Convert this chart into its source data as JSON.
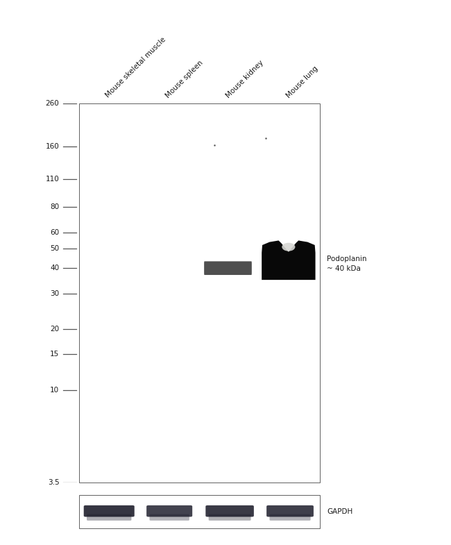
{
  "background_color": "#ffffff",
  "blot_bg": "#c8c8c8",
  "gapdh_bg": "#c0c0c0",
  "lane_labels": [
    "Mouse skeletal muscle",
    "Mouse spleen",
    "Mouse kidney",
    "Mouse lung"
  ],
  "mw_markers": [
    260,
    160,
    110,
    80,
    60,
    50,
    40,
    30,
    20,
    15,
    10,
    3.5
  ],
  "annotation_text": "Podoplanin\n~ 40 kDa",
  "gapdh_label": "GAPDH",
  "fig_width": 6.5,
  "fig_height": 7.85,
  "text_color": "#1a1a1a",
  "tick_color": "#555555",
  "band_dark": "#080808",
  "band_kidney": "#404040",
  "gapdh_band": "#1a1a28",
  "dust_color": "#444444",
  "reflect_color": "#d8d8d4"
}
